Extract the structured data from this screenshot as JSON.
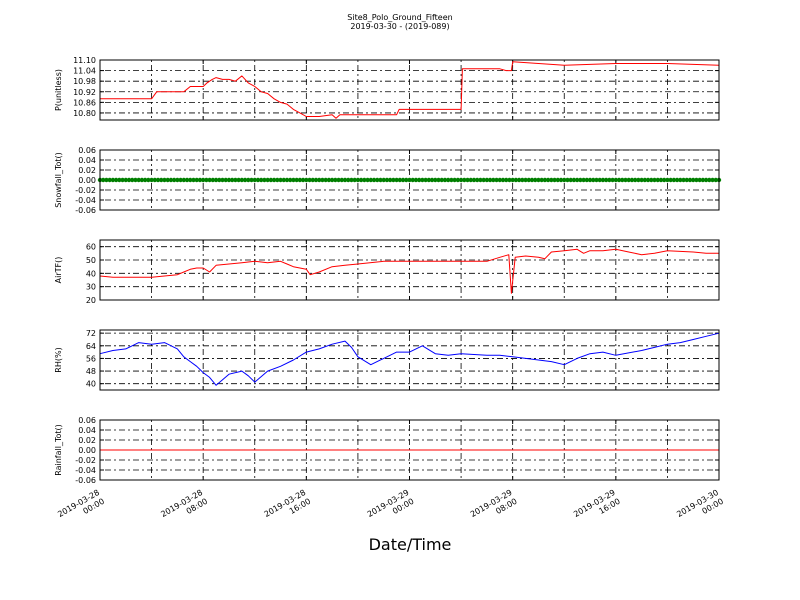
{
  "figure": {
    "title": "Site8_Polo_Ground_Fifteen",
    "subtitle": "2019-03-30 - (2019-089)",
    "xlabel": "Date/Time"
  },
  "chart_data": [
    {
      "type": "line",
      "ylabel": "P(unitless)",
      "color": "#ff0000",
      "ylim": [
        10.76,
        11.1
      ],
      "yticks": [
        "10.80",
        "10.86",
        "10.92",
        "10.98",
        "11.04",
        "11.10"
      ],
      "x_hours": [
        0,
        1,
        3,
        4,
        4.4,
        5,
        6,
        6.5,
        7,
        8,
        8.3,
        8.7,
        9,
        9.5,
        10,
        10.5,
        11,
        11.5,
        12,
        12.5,
        13,
        13.5,
        14,
        14.5,
        15,
        15.5,
        16,
        17,
        18,
        18.3,
        18.6,
        19,
        20,
        21,
        22,
        23,
        23.2,
        24,
        25,
        27,
        28,
        28.1,
        30,
        31,
        31.5,
        31.9,
        32,
        34,
        36,
        40,
        44,
        48
      ],
      "values": [
        10.88,
        10.88,
        10.88,
        10.88,
        10.92,
        10.92,
        10.92,
        10.92,
        10.95,
        10.95,
        10.97,
        10.99,
        11.0,
        10.99,
        10.99,
        10.98,
        11.01,
        10.97,
        10.95,
        10.92,
        10.91,
        10.88,
        10.86,
        10.85,
        10.82,
        10.8,
        10.78,
        10.78,
        10.79,
        10.77,
        10.79,
        10.79,
        10.79,
        10.79,
        10.79,
        10.79,
        10.82,
        10.82,
        10.82,
        10.82,
        10.82,
        11.05,
        11.05,
        11.05,
        11.04,
        11.04,
        11.09,
        11.08,
        11.07,
        11.08,
        11.08,
        11.07
      ]
    },
    {
      "type": "scatter",
      "ylabel": "Snowfall_Tot()",
      "color": "#007f00",
      "ylim": [
        -0.06,
        0.06
      ],
      "yticks": [
        "-0.06",
        "-0.04",
        "-0.02",
        "0.00",
        "0.02",
        "0.04",
        "0.06"
      ],
      "constant_value": 0.0,
      "x_range_hours": [
        0,
        48
      ]
    },
    {
      "type": "line",
      "ylabel": "AirTF()",
      "color": "#ff0000",
      "ylim": [
        20,
        65
      ],
      "yticks": [
        "20",
        "30",
        "40",
        "50",
        "60"
      ],
      "x_hours": [
        0,
        1,
        2,
        3,
        4,
        5,
        6,
        6.5,
        7,
        7.5,
        8,
        8.5,
        9,
        10,
        11,
        12,
        13,
        14,
        14.5,
        15,
        16,
        16.3,
        17,
        18,
        19,
        20,
        22,
        24,
        26,
        28,
        30,
        31,
        31.7,
        31.9,
        32.2,
        33,
        34,
        34.5,
        35,
        36,
        37,
        37.5,
        38,
        39,
        40,
        41,
        42,
        43,
        44,
        46,
        47,
        48
      ],
      "values": [
        38,
        37,
        37,
        37,
        37,
        38,
        39,
        41,
        43,
        44,
        44,
        41,
        46,
        47,
        48,
        49,
        48,
        49,
        47,
        45,
        43,
        39,
        41,
        45,
        46,
        47,
        49,
        49,
        49,
        49,
        49,
        52,
        54,
        25,
        52,
        53,
        52,
        51,
        56,
        57,
        58,
        55,
        57,
        57,
        58,
        56,
        54,
        55,
        57,
        56,
        55,
        55
      ]
    },
    {
      "type": "line",
      "ylabel": "RH(%)",
      "color": "#0000ff",
      "ylim": [
        36,
        74
      ],
      "yticks": [
        "40",
        "48",
        "56",
        "64",
        "72"
      ],
      "x_hours": [
        0,
        1,
        2,
        2.5,
        3,
        4,
        5,
        6,
        6.5,
        7,
        7.5,
        8,
        8.5,
        9,
        10,
        11,
        11.5,
        12,
        13,
        14,
        15,
        16,
        17,
        18,
        19,
        19.5,
        20,
        21,
        22,
        23,
        24,
        25,
        26,
        27,
        28,
        30,
        31,
        32,
        33,
        34,
        35,
        36,
        37,
        38,
        39,
        40,
        42,
        43,
        44,
        45,
        46,
        47,
        48
      ],
      "values": [
        59,
        61,
        62,
        64,
        66,
        65,
        66,
        62,
        57,
        54,
        51,
        47,
        44,
        39,
        46,
        48,
        45,
        41,
        48,
        51,
        55,
        60,
        62,
        65,
        67,
        63,
        57,
        52,
        56,
        60,
        60,
        64,
        59,
        58,
        59,
        58,
        58,
        57,
        56,
        55,
        54,
        52,
        56,
        59,
        60,
        58,
        61,
        63,
        65,
        66,
        68,
        70,
        72
      ]
    },
    {
      "type": "line",
      "ylabel": "Rainfall_Tot()",
      "color": "#ff0000",
      "ylim": [
        -0.06,
        0.06
      ],
      "yticks": [
        "-0.06",
        "-0.04",
        "-0.02",
        "0.00",
        "0.02",
        "0.04",
        "0.06"
      ],
      "constant_value": 0.0,
      "x_range_hours": [
        0,
        48
      ]
    }
  ],
  "x_axis": {
    "range_hours": [
      0,
      48
    ],
    "ticks": [
      {
        "hour": 0,
        "line1": "2019-03-28",
        "line2": "00:00"
      },
      {
        "hour": 8,
        "line1": "2019-03-28",
        "line2": "08:00"
      },
      {
        "hour": 16,
        "line1": "2019-03-28",
        "line2": "16:00"
      },
      {
        "hour": 24,
        "line1": "2019-03-29",
        "line2": "00:00"
      },
      {
        "hour": 32,
        "line1": "2019-03-29",
        "line2": "08:00"
      },
      {
        "hour": 40,
        "line1": "2019-03-29",
        "line2": "16:00"
      },
      {
        "hour": 48,
        "line1": "2019-03-30",
        "line2": "00:00"
      }
    ]
  }
}
